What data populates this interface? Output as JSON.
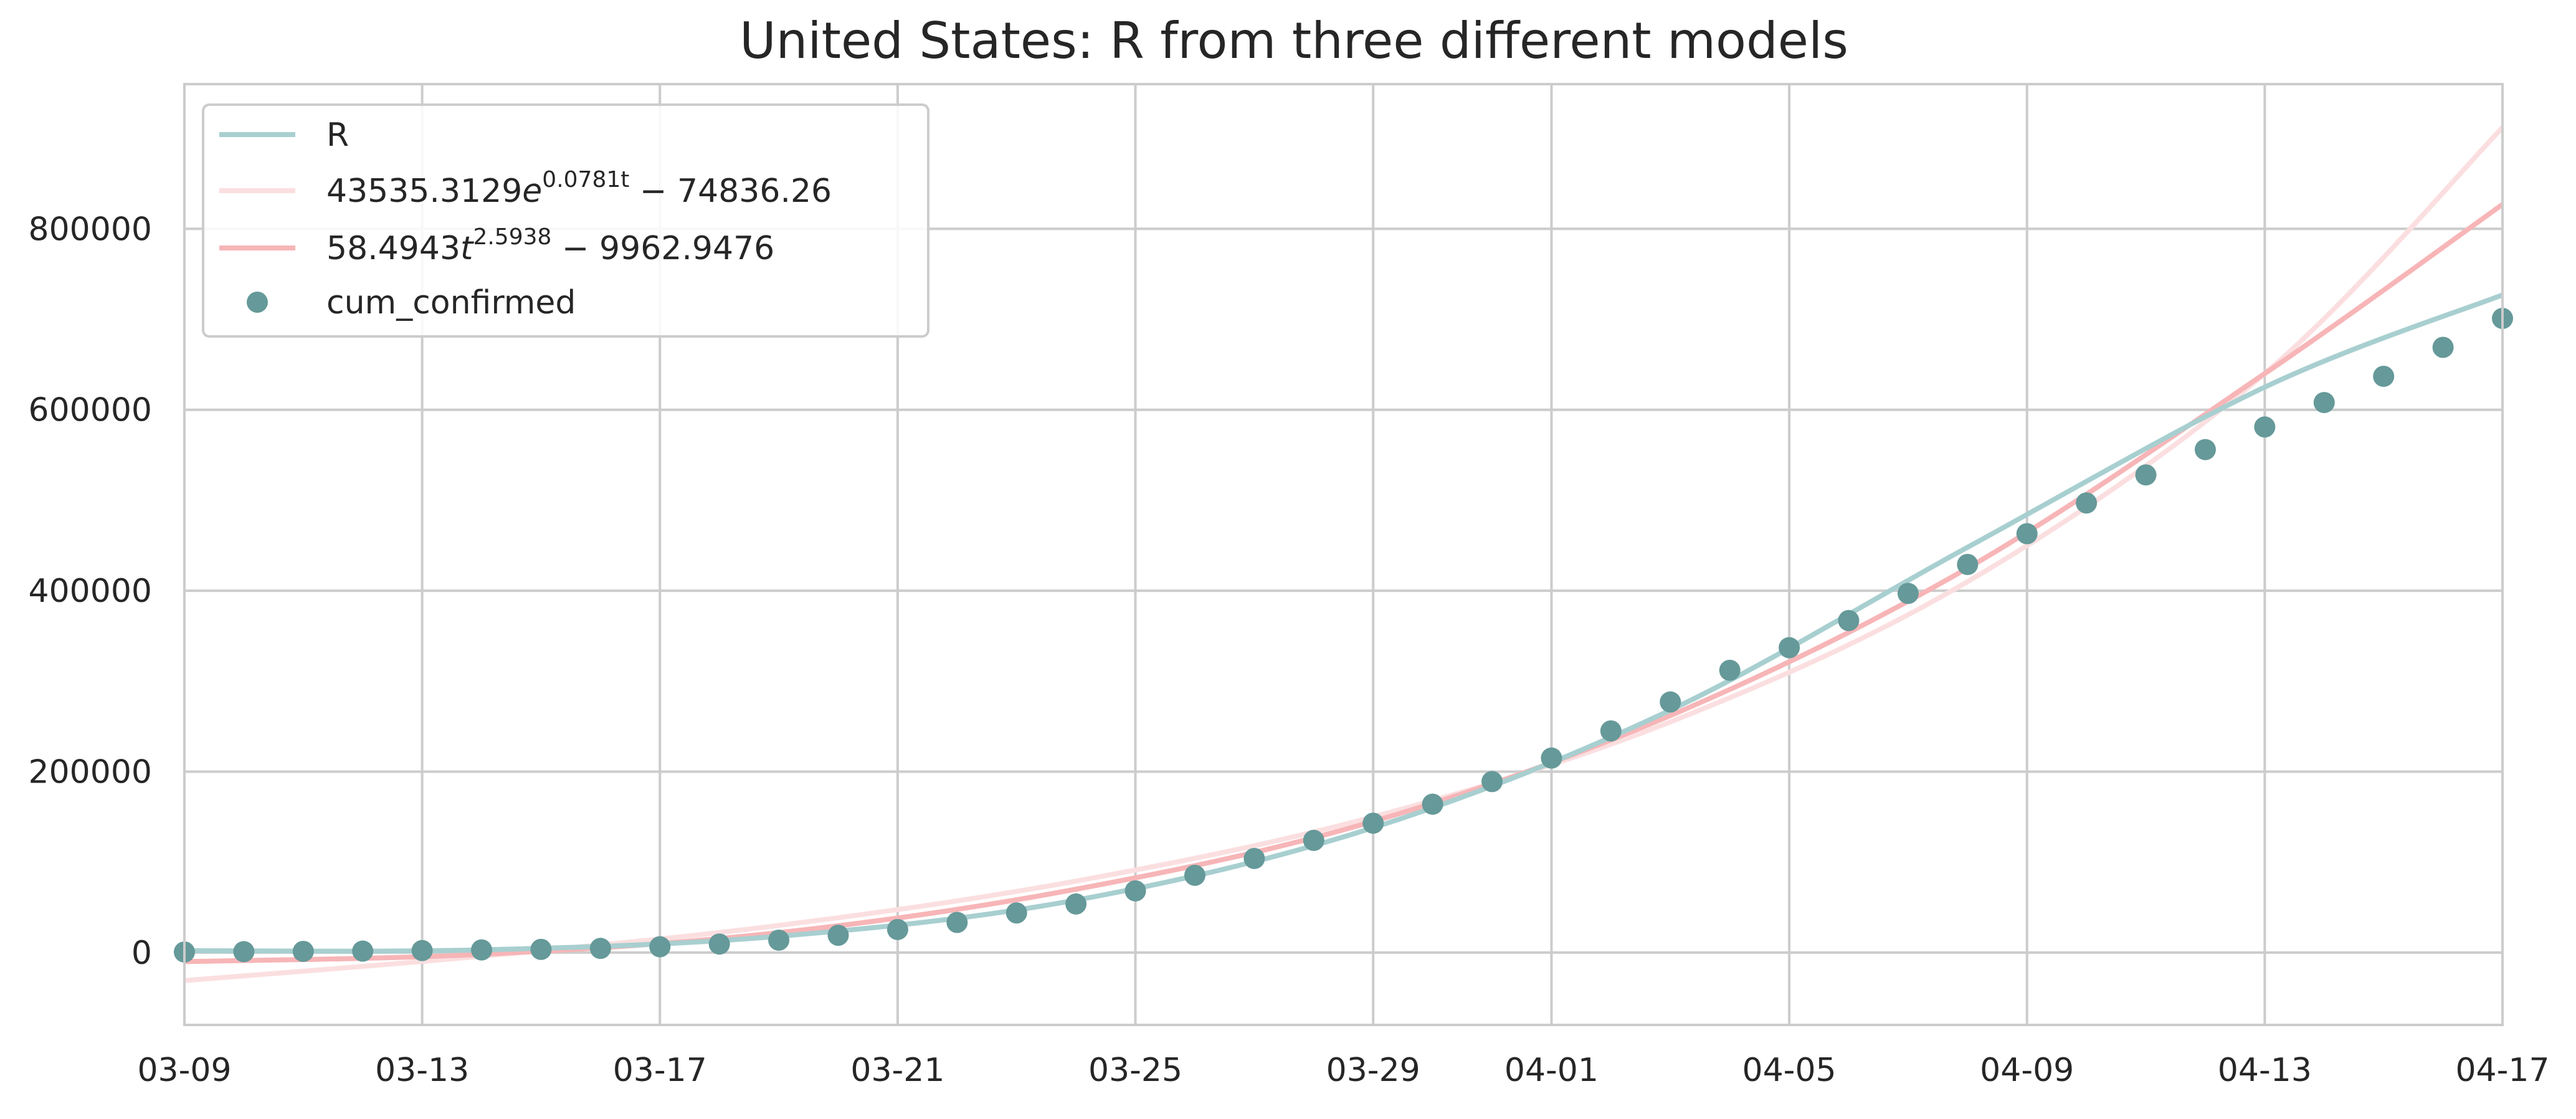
{
  "chart_data": {
    "type": "line",
    "title": "United States: R from three different models",
    "xlabel": "",
    "ylabel": "",
    "x_axis_type": "date",
    "x_range": [
      "2020-03-09",
      "2020-04-17"
    ],
    "xlim": [
      "03-09",
      "04-17"
    ],
    "x_ticks": [
      "03-09",
      "03-13",
      "03-17",
      "03-21",
      "03-25",
      "03-29",
      "04-01",
      "04-05",
      "04-09",
      "04-13",
      "04-17"
    ],
    "ylim": [
      -80000,
      960000
    ],
    "y_ticks": [
      0,
      200000,
      400000,
      600000,
      800000
    ],
    "grid": true,
    "legend_position": "top-left",
    "series": [
      {
        "name": "R",
        "kind": "line",
        "color": "#a8cfd0",
        "x": [
          "03-09",
          "03-14",
          "03-19",
          "03-24",
          "03-29",
          "04-03",
          "04-08",
          "04-13",
          "04-17"
        ],
        "values": [
          2000,
          3000,
          18000,
          58000,
          138000,
          268000,
          448000,
          625000,
          727000
        ]
      },
      {
        "name_parts": [
          "43535.3129",
          "e",
          "0.0781t",
          " − 74836.26"
        ],
        "kind": "line",
        "color": "#fbdfe0",
        "x": [
          "03-09",
          "03-14",
          "03-19",
          "03-24",
          "03-29",
          "04-03",
          "04-08",
          "04-13",
          "04-17"
        ],
        "values": [
          -31000,
          -4000,
          30000,
          79000,
          150000,
          255000,
          410000,
          640000,
          912000
        ]
      },
      {
        "name_parts": [
          "58.4943",
          "t",
          "2.5938",
          " − 9962.9476"
        ],
        "kind": "line",
        "color": "#f7b5b7",
        "x": [
          "03-09",
          "03-14",
          "03-19",
          "03-24",
          "03-29",
          "04-03",
          "04-08",
          "04-13",
          "04-17"
        ],
        "values": [
          -10000,
          -2000,
          22000,
          70000,
          145000,
          262000,
          425000,
          640000,
          827000
        ]
      },
      {
        "name": "cum_confirmed",
        "kind": "scatter",
        "color": "#669999",
        "x": [
          "03-09",
          "03-10",
          "03-11",
          "03-12",
          "03-13",
          "03-14",
          "03-15",
          "03-16",
          "03-17",
          "03-18",
          "03-19",
          "03-20",
          "03-21",
          "03-22",
          "03-23",
          "03-24",
          "03-25",
          "03-26",
          "03-27",
          "03-28",
          "03-29",
          "03-30",
          "03-31",
          "04-01",
          "04-02",
          "04-03",
          "04-04",
          "04-05",
          "04-06",
          "04-07",
          "04-08",
          "04-09",
          "04-10",
          "04-11",
          "04-12",
          "04-13",
          "04-14",
          "04-15",
          "04-16",
          "04-17"
        ],
        "values": [
          600,
          1000,
          1300,
          1600,
          2200,
          2900,
          3500,
          4600,
          6400,
          9400,
          13700,
          19100,
          25500,
          33300,
          43800,
          53700,
          68200,
          85400,
          104000,
          124000,
          143000,
          164000,
          189000,
          215000,
          245000,
          277000,
          312000,
          337000,
          367000,
          397000,
          429000,
          463000,
          497000,
          528000,
          556000,
          581000,
          608000,
          637000,
          669000,
          701000
        ]
      }
    ]
  }
}
